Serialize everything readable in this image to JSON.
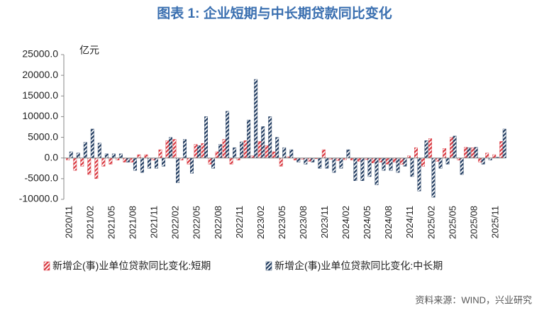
{
  "chart_data": {
    "type": "bar",
    "title": "图表 1:  企业短期与中长期贷款同比变化",
    "unit": "亿元",
    "source": "资料来源：WIND，兴业研究",
    "categories": [
      "2020/11",
      null,
      null,
      "2021/02",
      null,
      null,
      "2021/05",
      null,
      null,
      "2021/08",
      null,
      null,
      "2021/11",
      null,
      null,
      "2022/02",
      null,
      null,
      "2022/05",
      null,
      null,
      "2022/08",
      null,
      null,
      "2022/11",
      null,
      null,
      "2023/02",
      null,
      null,
      "2023/05",
      null,
      null,
      "2023/08",
      null,
      null,
      "2023/11",
      null,
      null,
      "2024/02",
      null,
      null,
      "2024/05",
      null,
      null,
      "2024/08",
      null,
      null,
      "2024/11",
      null,
      null,
      "2025/02",
      null,
      null,
      "2025/05",
      null,
      null,
      "2025/08",
      null,
      null,
      "2025/11",
      null
    ],
    "series": [
      {
        "name": "新增企(事)业单位贷款同比变化:短期",
        "color": "#d9363e",
        "values": [
          -500,
          -3000,
          -2000,
          -4000,
          -5000,
          -2000,
          -1500,
          -500,
          -1000,
          -1000,
          800,
          800,
          -500,
          2000,
          4200,
          4500,
          -500,
          -1500,
          3300,
          3500,
          -1500,
          1500,
          4500,
          -1500,
          -500,
          4200,
          500,
          4000,
          3000,
          1500,
          -2000,
          300,
          -500,
          -300,
          -800,
          -200,
          2000,
          -300,
          -600,
          -400,
          -500,
          -800,
          -400,
          -1200,
          -1000,
          -1500,
          -1000,
          -1500,
          500,
          2500,
          -2000,
          4700,
          -800,
          2300,
          5000,
          -500,
          2600,
          2500,
          -1000,
          1200,
          800,
          4000
        ]
      },
      {
        "name": "新增企(事)业单位贷款同比变化:中长期",
        "color": "#1f3a5f",
        "values": [
          1500,
          1200,
          3800,
          7000,
          3600,
          1000,
          1000,
          1000,
          -1000,
          -3000,
          -3500,
          -2500,
          -2500,
          -2000,
          5000,
          -6000,
          4500,
          -3700,
          3000,
          10000,
          -2500,
          3300,
          11300,
          2500,
          3900,
          9200,
          19000,
          7600,
          10000,
          5000,
          2500,
          2000,
          -1000,
          -1500,
          -1000,
          -2500,
          -2500,
          -3500,
          -2500,
          2000,
          -5500,
          -5500,
          -4500,
          -6500,
          -3000,
          -3000,
          -3500,
          -2000,
          -4500,
          -8000,
          4200,
          -9500,
          -2500,
          -1500,
          5300,
          -4000,
          2500,
          2600,
          -1500,
          -500,
          200,
          7000
        ]
      }
    ],
    "ylim": [
      -10000,
      25000
    ],
    "yticks": [
      {
        "value": -10000,
        "label": "-10000.0"
      },
      {
        "value": -5000,
        "label": "-5000.0"
      },
      {
        "value": 0,
        "label": "0.0"
      },
      {
        "value": 5000,
        "label": "5000.0"
      },
      {
        "value": 10000,
        "label": "10000.0"
      },
      {
        "value": 15000,
        "label": "15000.0"
      },
      {
        "value": 20000,
        "label": "20000.0"
      },
      {
        "value": 25000,
        "label": "25000.0"
      }
    ],
    "grid": false
  }
}
